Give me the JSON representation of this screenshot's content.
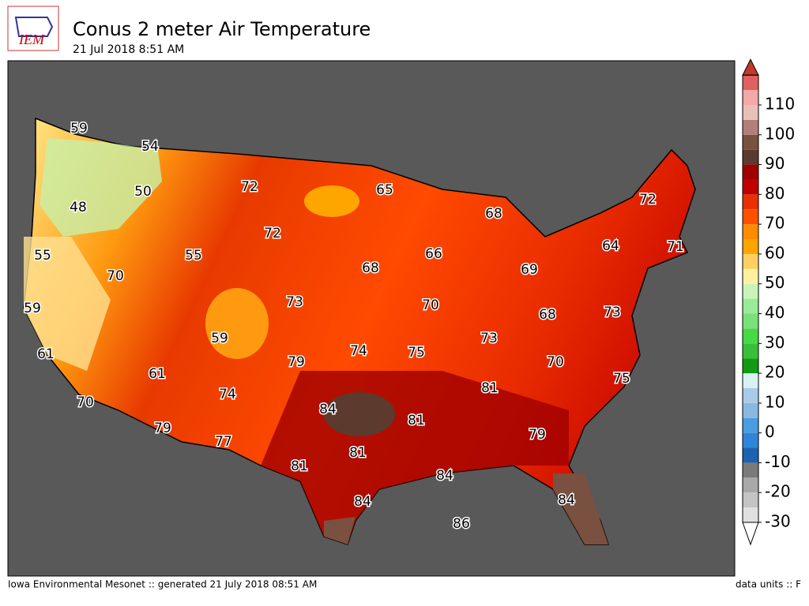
{
  "header": {
    "title": "Conus 2 meter Air Temperature",
    "timestamp": "21 Jul 2018 8:51 AM",
    "logo": "IEM"
  },
  "map": {
    "contour_labels": [
      59,
      54,
      50,
      48,
      55,
      70,
      59,
      61,
      70,
      72,
      72,
      55,
      65,
      68,
      66,
      68,
      64,
      71,
      72,
      69,
      73,
      70,
      68,
      73,
      59,
      74,
      75,
      73,
      79,
      61,
      74,
      70,
      75,
      81,
      84,
      81,
      79,
      77,
      79,
      81,
      81,
      84,
      84,
      84,
      86
    ]
  },
  "colorbar": {
    "ticks": [
      -30,
      -20,
      -10,
      0,
      10,
      20,
      30,
      40,
      50,
      60,
      70,
      80,
      90,
      100,
      110
    ],
    "colors": [
      "#e0e0e0",
      "#c4c4c4",
      "#a8a8a8",
      "#7a7a7a",
      "#1f62b0",
      "#2f86d8",
      "#4a9de0",
      "#8ab8e0",
      "#a8cbe8",
      "#d6f2f2",
      "#129a12",
      "#38c038",
      "#48d848",
      "#7ae07a",
      "#98ec98",
      "#c8f4b8",
      "#fff0a0",
      "#ffd060",
      "#ffa500",
      "#ff8c00",
      "#ff5000",
      "#e83000",
      "#c00000",
      "#a00000",
      "#5c3a2e",
      "#7a5040",
      "#b08078",
      "#e8c0b8",
      "#f4a8a8",
      "#e06060"
    ],
    "over_color": "#c0392b",
    "under_color": "#ffffff"
  },
  "footer": {
    "credit": "Iowa Environmental Mesonet :: generated 21 July 2018 08:51 AM",
    "units": "data units :: F"
  }
}
